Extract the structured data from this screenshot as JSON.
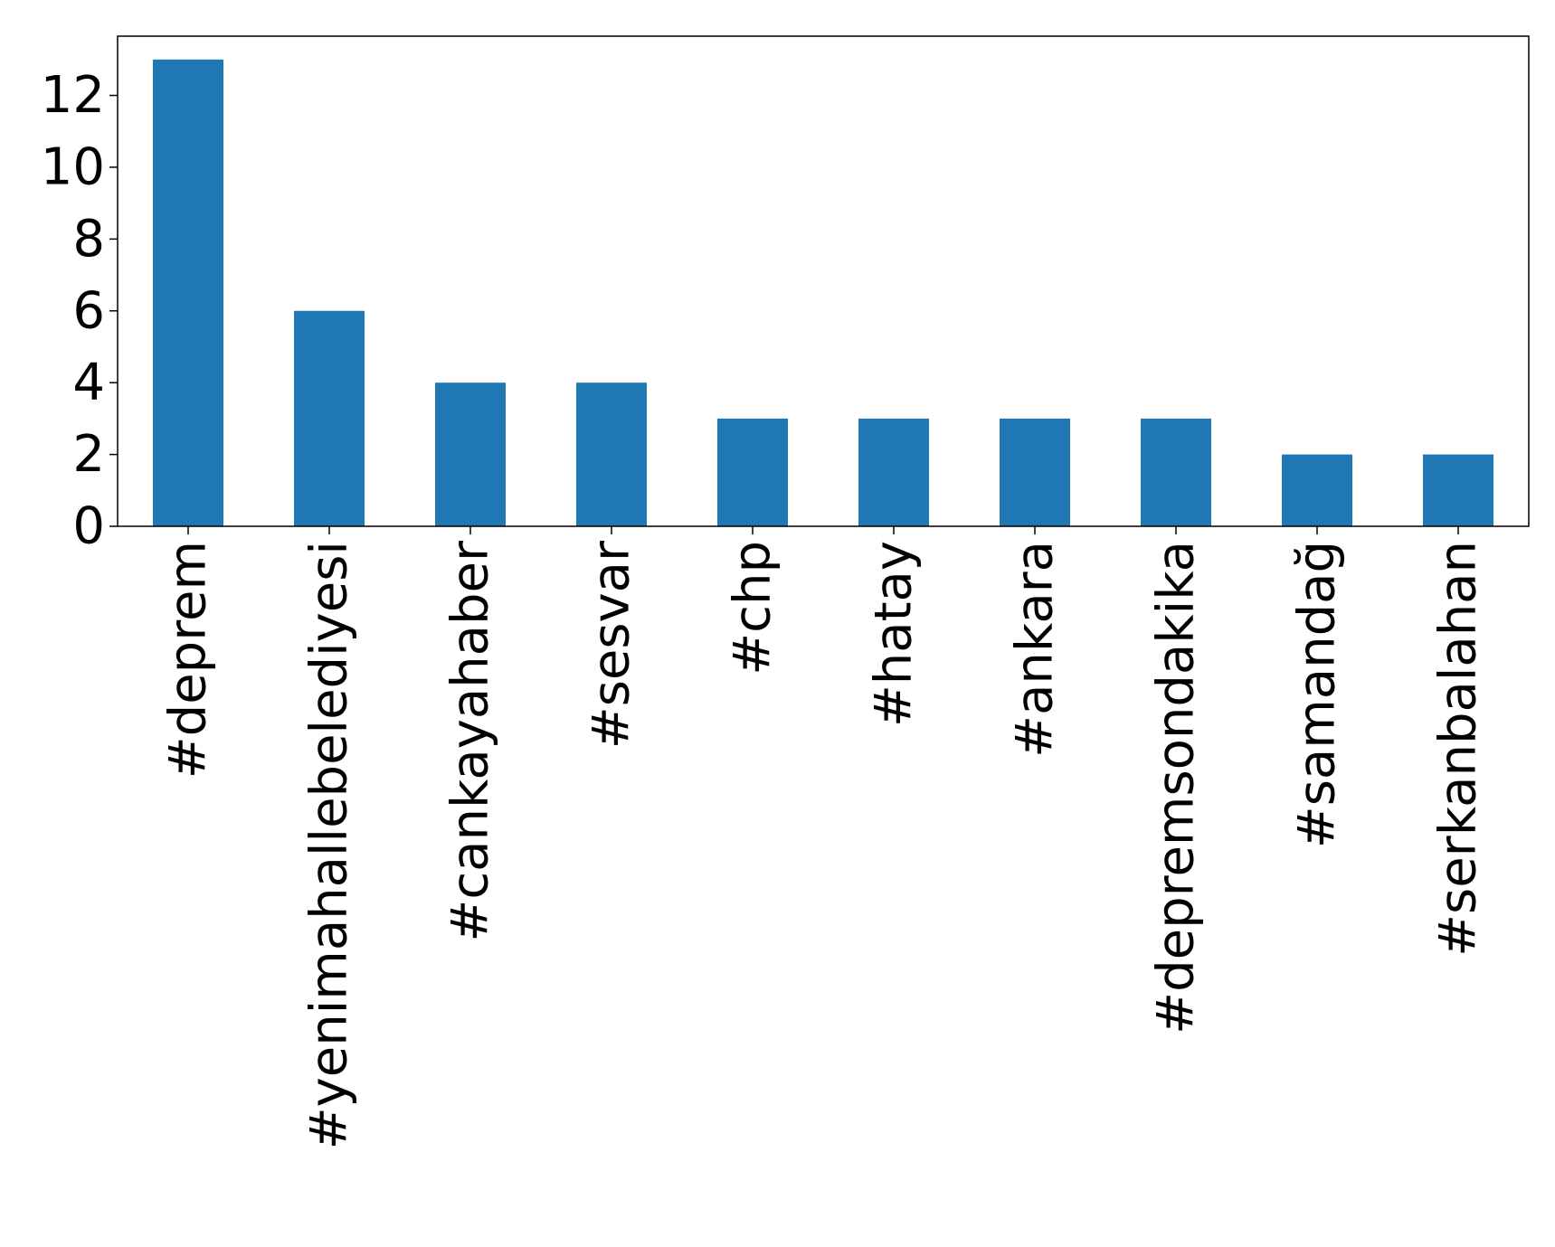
{
  "chart_data": {
    "type": "bar",
    "title": "",
    "xlabel": "",
    "ylabel": "",
    "categories": [
      "#deprem",
      "#yenimahallebelediyesi",
      "#cankayahaber",
      "#sesvar",
      "#chp",
      "#hatay",
      "#ankara",
      "#depremsondakika",
      "#samandağ",
      "#serkanbalahan"
    ],
    "values": [
      13,
      6,
      4,
      4,
      3,
      3,
      3,
      3,
      2,
      2
    ],
    "yticks": [
      0,
      2,
      4,
      6,
      8,
      10,
      12
    ],
    "ylim": [
      0,
      13.65
    ],
    "grid": false,
    "legend": "none",
    "bar_color": "#1f77b4"
  }
}
